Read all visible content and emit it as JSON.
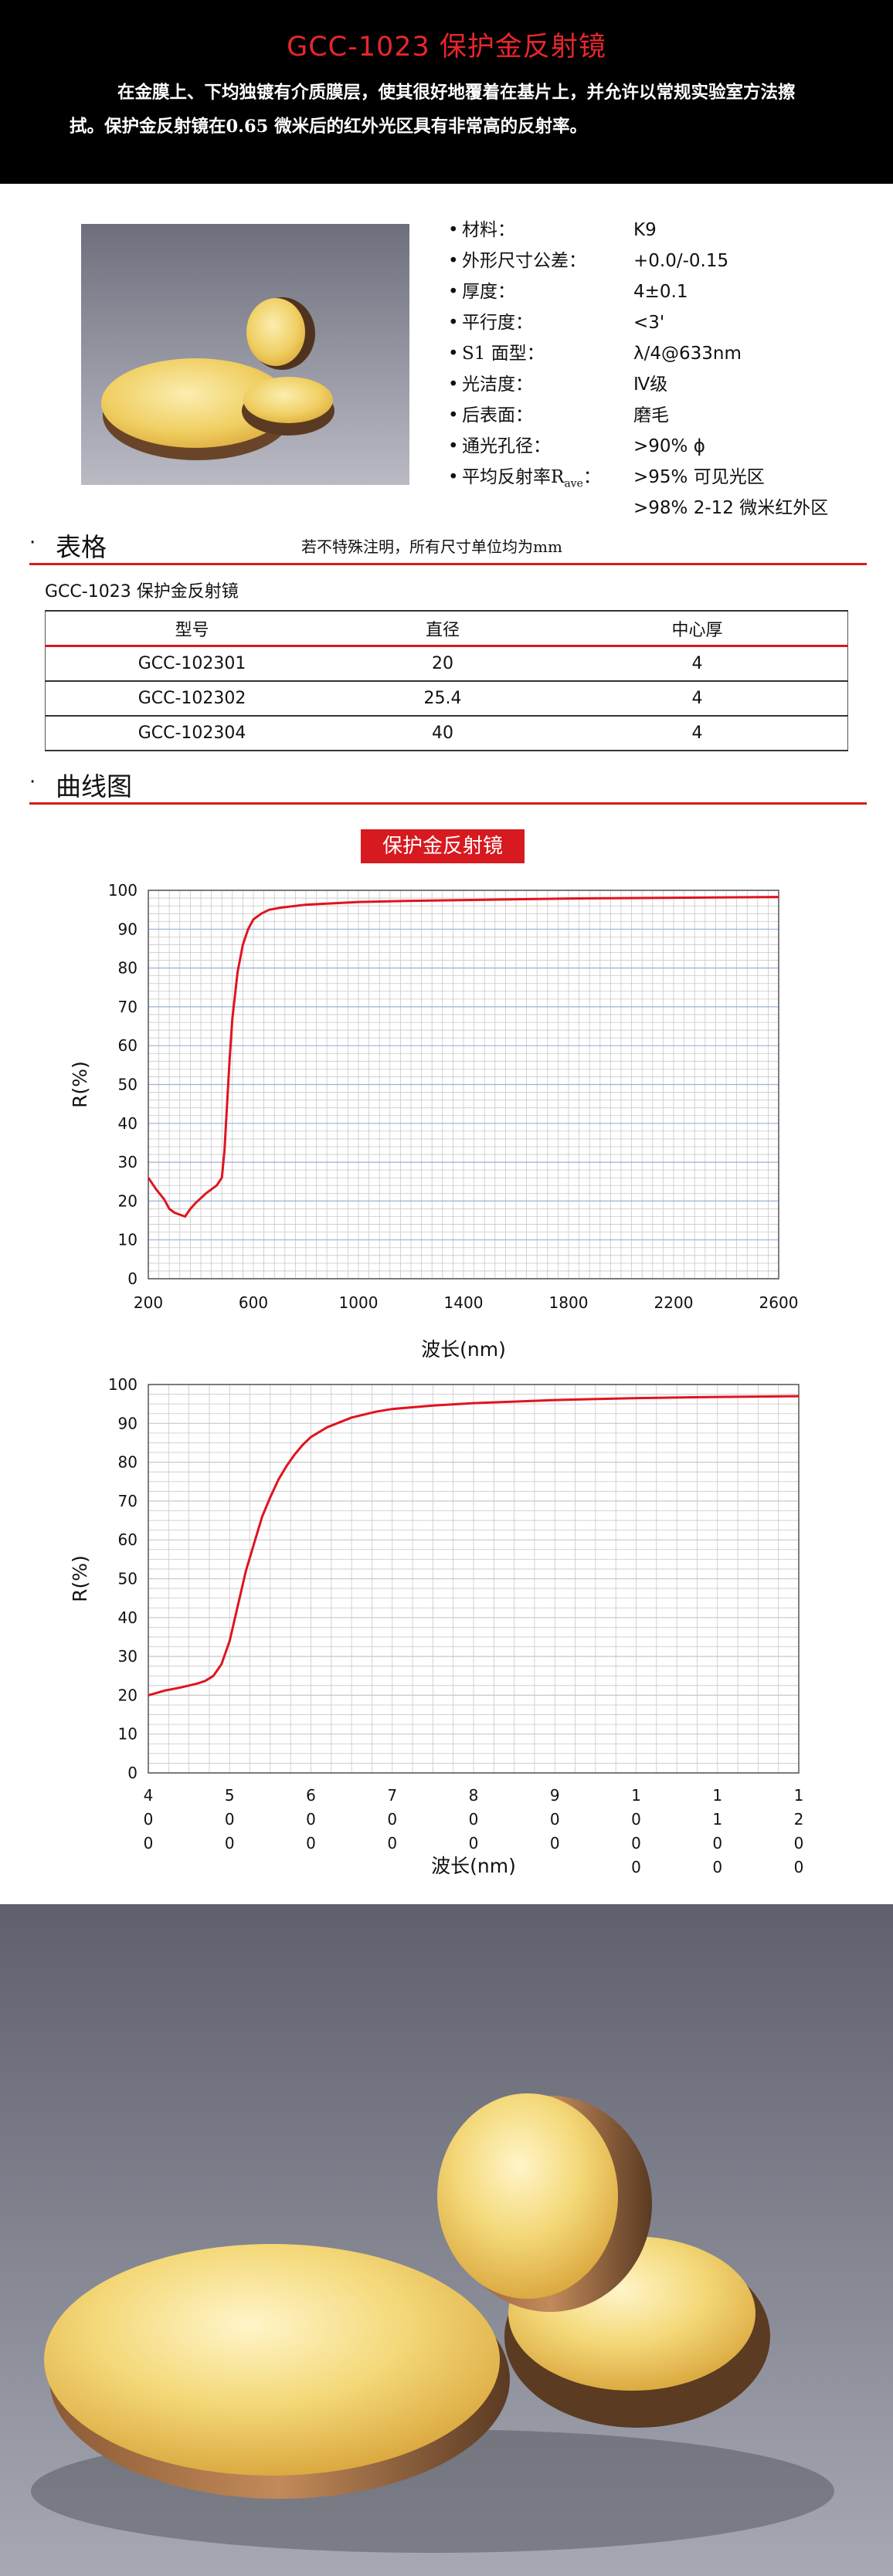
{
  "header": {
    "title": "GCC-1023 保护金反射镜",
    "intro": "在金膜上、下均独镀有介质膜层，使其很好地覆着在基片上，并允许以常规实验室方法擦拭。保护金反射镜在0.65 微米后的红外光区具有非常高的反射率。"
  },
  "specs": [
    {
      "label": "材料：",
      "value": "K9"
    },
    {
      "label": "外形尺寸公差：",
      "value": "+0.0/-0.15"
    },
    {
      "label": "厚度：",
      "value": "4±0.1"
    },
    {
      "label": "平行度：",
      "value": "<3'"
    },
    {
      "label": "S1 面型：",
      "value": "λ/4@633nm"
    },
    {
      "label": "光洁度：",
      "value": "Ⅳ级"
    },
    {
      "label": "后表面：",
      "value": "磨毛"
    },
    {
      "label": "通光孔径：",
      "value": ">90% ϕ"
    },
    {
      "label": "平均反射率",
      "label_sub": "ave",
      "label_main": "R",
      "label_tail": "：",
      "value": ">95% 可见光区"
    },
    {
      "label": "",
      "value": ">98% 2-12 微米红外区"
    }
  ],
  "sections": {
    "table": {
      "bullet": "·",
      "name": "表格",
      "note": "若不特殊注明，所有尺寸单位均为mm"
    },
    "curves": {
      "bullet": "·",
      "name": "曲线图"
    }
  },
  "table": {
    "caption": "GCC-1023 保护金反射镜",
    "headers": [
      "型号",
      "直径",
      "中心厚"
    ],
    "rows": [
      [
        "GCC-102301",
        "20",
        "4"
      ],
      [
        "GCC-102302",
        "25.4",
        "4"
      ],
      [
        "GCC-102304",
        "40",
        "4"
      ]
    ]
  },
  "colors": {
    "accent": "#d71920",
    "curve": "#e0141e",
    "header_bg": "#000000"
  },
  "chart_data": [
    {
      "type": "line",
      "title": "保护金反射镜",
      "xlabel": "波长(nm)",
      "ylabel": "R(%)",
      "xlim": [
        200,
        2600
      ],
      "ylim": [
        0,
        100
      ],
      "xticks": [
        200,
        600,
        1000,
        1400,
        1800,
        2200,
        2600
      ],
      "yticks": [
        0,
        10,
        20,
        30,
        40,
        50,
        60,
        70,
        80,
        90,
        100
      ],
      "grid": true,
      "series": [
        {
          "x": [
            200,
            230,
            260,
            280,
            300,
            320,
            340,
            360,
            380,
            420,
            460,
            480,
            490,
            500,
            510,
            520,
            540,
            560,
            580,
            600,
            630,
            660,
            700,
            800,
            1000,
            1200,
            1400,
            1600,
            1800,
            2000,
            2200,
            2400,
            2600
          ],
          "y": [
            26,
            23,
            20.5,
            18,
            17,
            16.5,
            16,
            18,
            19.5,
            22,
            24,
            26,
            33,
            45,
            57,
            67,
            79,
            86,
            90,
            92.5,
            94,
            95,
            95.5,
            96.3,
            97,
            97.3,
            97.5,
            97.7,
            97.9,
            98,
            98.1,
            98.2,
            98.3
          ]
        }
      ]
    },
    {
      "type": "line",
      "xlabel": "波长(nm)",
      "ylabel": "R(%)",
      "xlim": [
        400,
        1200
      ],
      "ylim": [
        0,
        100
      ],
      "xticks": [
        "400",
        "500",
        "600",
        "700",
        "800",
        "900",
        "1000",
        "1100",
        "1200"
      ],
      "yticks": [
        0,
        10,
        20,
        30,
        40,
        50,
        60,
        70,
        80,
        90,
        100
      ],
      "grid": true,
      "series": [
        {
          "x": [
            400,
            420,
            440,
            460,
            470,
            480,
            490,
            500,
            510,
            520,
            530,
            540,
            550,
            560,
            570,
            580,
            590,
            600,
            620,
            650,
            680,
            700,
            750,
            800,
            850,
            900,
            1000,
            1100,
            1200
          ],
          "y": [
            20,
            21.2,
            22,
            23,
            23.7,
            25,
            28,
            34,
            43,
            52,
            59,
            66,
            71,
            75.5,
            79,
            82,
            84.5,
            86.5,
            89,
            91.5,
            93,
            93.7,
            94.6,
            95.2,
            95.6,
            96,
            96.5,
            96.8,
            97
          ]
        }
      ]
    }
  ]
}
